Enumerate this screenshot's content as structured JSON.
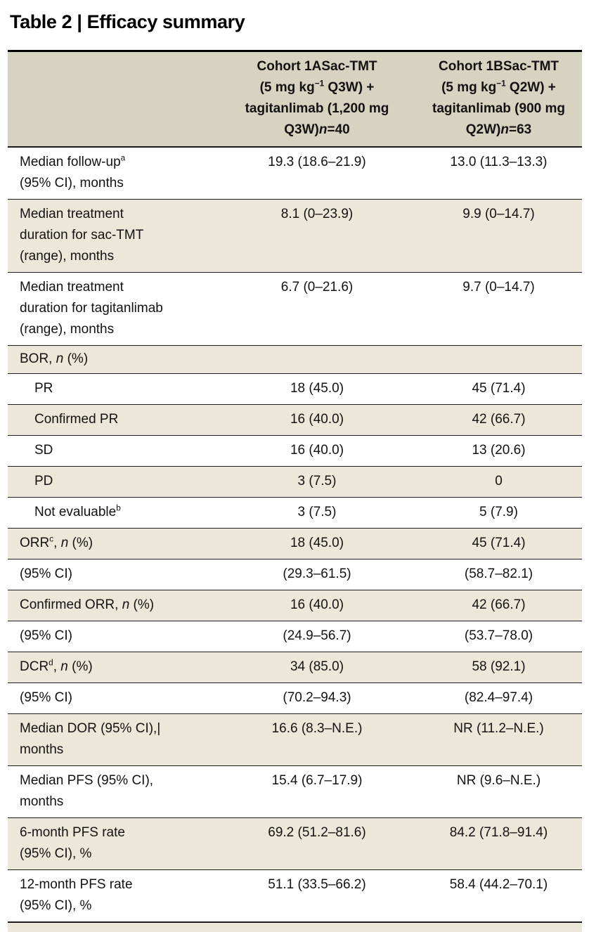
{
  "colors": {
    "header_bg": "#d7d3c1",
    "stripe_bg": "#ebe8da",
    "border": "#1c1c1c",
    "text": "#121212"
  },
  "title": "Table 2 | Efficacy summary",
  "table": {
    "columns": [
      [
        {
          "t": "Cohort 1ASac-TMT\n(5 mg kg"
        },
        {
          "t": "−1",
          "s": "sup"
        },
        {
          "t": " Q3W) +\ntagitanlimab (1,200 mg\nQ3W)"
        },
        {
          "t": "n",
          "s": "i"
        },
        {
          "t": "=40"
        }
      ],
      [
        {
          "t": "Cohort 1BSac-TMT\n(5 mg kg"
        },
        {
          "t": "−1",
          "s": "sup"
        },
        {
          "t": " Q2W) +\ntagitanlimab (900 mg\nQ2W)"
        },
        {
          "t": "n",
          "s": "i"
        },
        {
          "t": "=63"
        }
      ]
    ],
    "rows": [
      {
        "label": [
          {
            "t": "Median follow-up"
          },
          {
            "t": "a",
            "s": "sup"
          },
          {
            "t": "\n(95% CI), months"
          }
        ],
        "c1": "19.3 (18.6–21.9)",
        "c2": "13.0 (11.3–13.3)"
      },
      {
        "label": "Median treatment\nduration for sac-TMT\n(range), months",
        "c1": "8.1 (0–23.9)",
        "c2": "9.9 (0–14.7)"
      },
      {
        "label": "Median treatment\nduration for tagitanlimab\n(range), months",
        "c1": "6.7 (0–21.6)",
        "c2": "9.7 (0–14.7)"
      },
      {
        "label": [
          {
            "t": "BOR, "
          },
          {
            "t": "n",
            "s": "i"
          },
          {
            "t": " (%)"
          }
        ],
        "c1": "",
        "c2": "",
        "category": true
      },
      {
        "label": "PR",
        "c1": "18 (45.0)",
        "c2": "45 (71.4)",
        "indent": true
      },
      {
        "label": "Confirmed PR",
        "c1": "16 (40.0)",
        "c2": "42 (66.7)",
        "indent": true
      },
      {
        "label": "SD",
        "c1": "16 (40.0)",
        "c2": "13 (20.6)",
        "indent": true
      },
      {
        "label": "PD",
        "c1": "3 (7.5)",
        "c2": "0",
        "indent": true
      },
      {
        "label": [
          {
            "t": "Not evaluable"
          },
          {
            "t": "b",
            "s": "sup"
          }
        ],
        "c1": "3 (7.5)",
        "c2": "5 (7.9)",
        "indent": true
      },
      {
        "label": [
          {
            "t": "ORR"
          },
          {
            "t": "c",
            "s": "sup"
          },
          {
            "t": ", "
          },
          {
            "t": "n",
            "s": "i"
          },
          {
            "t": " (%)"
          }
        ],
        "c1": "18 (45.0)",
        "c2": "45 (71.4)"
      },
      {
        "label": "(95% CI)",
        "c1": "(29.3–61.5)",
        "c2": "(58.7–82.1)"
      },
      {
        "label": [
          {
            "t": "Confirmed ORR, "
          },
          {
            "t": "n",
            "s": "i"
          },
          {
            "t": " (%)"
          }
        ],
        "c1": "16 (40.0)",
        "c2": "42 (66.7)"
      },
      {
        "label": "(95% CI)",
        "c1": "(24.9–56.7)",
        "c2": "(53.7–78.0)"
      },
      {
        "label": [
          {
            "t": "DCR"
          },
          {
            "t": "d",
            "s": "sup"
          },
          {
            "t": ", "
          },
          {
            "t": "n",
            "s": "i"
          },
          {
            "t": " (%)"
          }
        ],
        "c1": "34 (85.0)",
        "c2": "58 (92.1)"
      },
      {
        "label": "(95% CI)",
        "c1": "(70.2–94.3)",
        "c2": "(82.4–97.4)"
      },
      {
        "label": [
          {
            "t": "Median DOR (95% CI),"
          },
          {
            "t": "|",
            "s": "caret"
          },
          {
            "t": "\nmonths"
          }
        ],
        "c1": "16.6 (8.3–N.E.)",
        "c2": "NR (11.2–N.E.)"
      },
      {
        "label": "Median PFS (95% CI),\nmonths",
        "c1": "15.4 (6.7–17.9)",
        "c2": "NR (9.6–N.E.)"
      },
      {
        "label": "6-month PFS rate\n(95% CI), %",
        "c1": "69.2 (51.2–81.6)",
        "c2": "84.2 (71.8–91.4)"
      },
      {
        "label": "12-month PFS rate\n(95% CI), %",
        "c1": "51.1 (33.5–66.2)",
        "c2": "58.4 (44.2–70.1)"
      }
    ]
  }
}
